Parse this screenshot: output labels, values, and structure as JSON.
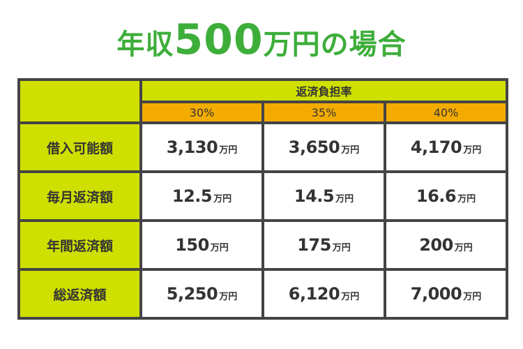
{
  "title": {
    "prefix": "年収",
    "number": "500",
    "suffix": "万円の場合"
  },
  "table": {
    "group_header": "返済負担率",
    "columns": [
      "30%",
      "35%",
      "40%"
    ],
    "unit": "万円",
    "rows": [
      {
        "label": "借入可能額",
        "values": [
          "3,130",
          "3,650",
          "4,170"
        ]
      },
      {
        "label": "毎月返済額",
        "values": [
          "12.5",
          "14.5",
          "16.6"
        ]
      },
      {
        "label": "年間返済額",
        "values": [
          "150",
          "175",
          "200"
        ]
      },
      {
        "label": "総返済額",
        "values": [
          "5,250",
          "6,120",
          "7,000"
        ]
      }
    ]
  },
  "colors": {
    "title": "#3dae3a",
    "header_bg": "#cfdf00",
    "pct_bg": "#f4ab00",
    "border": "#444444"
  }
}
